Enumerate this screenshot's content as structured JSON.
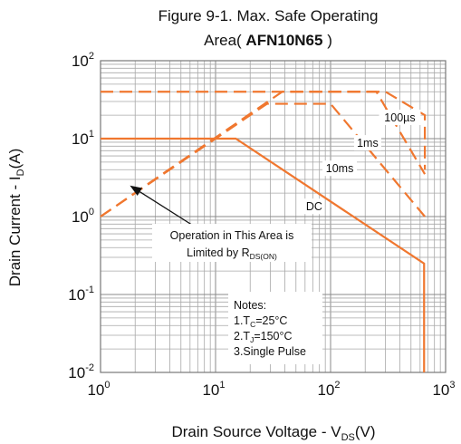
{
  "chart_data": {
    "type": "line",
    "title_line1": "Figure 9-1. Max. Safe Operating",
    "title_line2_prefix": "Area( ",
    "title_line2_bold": "AFN10N65",
    "title_line2_suffix": " )",
    "xlabel_main": "Drain Source Voltage - V",
    "xlabel_sub": "DS",
    "xlabel_tail": "(V)",
    "ylabel_main": "Drain Current - I",
    "ylabel_sub": "D",
    "ylabel_tail": "(A)",
    "x_scale": "log",
    "y_scale": "log",
    "xlim": [
      1,
      1000
    ],
    "ylim": [
      0.01,
      100
    ],
    "x_ticks": [
      {
        "base": "10",
        "exp": "0",
        "value": 1
      },
      {
        "base": "10",
        "exp": "1",
        "value": 10
      },
      {
        "base": "10",
        "exp": "2",
        "value": 100
      },
      {
        "base": "10",
        "exp": "3",
        "value": 1000
      }
    ],
    "y_ticks": [
      {
        "base": "10",
        "exp": "2",
        "value": 100
      },
      {
        "base": "10",
        "exp": "1",
        "value": 10
      },
      {
        "base": "10",
        "exp": "0",
        "value": 1
      },
      {
        "base": "10",
        "exp": "-1",
        "value": 0.1
      },
      {
        "base": "10",
        "exp": "-2",
        "value": 0.01
      }
    ],
    "grid": true,
    "line_color": "#f0772f",
    "series": [
      {
        "name": "DC",
        "style": "solid",
        "points": [
          [
            1,
            10
          ],
          [
            15,
            10
          ],
          [
            650,
            0.25
          ],
          [
            650,
            0.01
          ]
        ],
        "label_at": [
          72,
          1.3
        ]
      },
      {
        "name": "10ms",
        "style": "dashed",
        "points": [
          [
            1,
            1
          ],
          [
            28,
            28
          ],
          [
            100,
            28
          ],
          [
            660,
            1.0
          ]
        ],
        "label_at": [
          120,
          4.0
        ]
      },
      {
        "name": "1ms",
        "style": "dashed",
        "points": [
          [
            1,
            1
          ],
          [
            38,
            40
          ],
          [
            250,
            40
          ],
          [
            660,
            3.5
          ]
        ],
        "label_at": [
          210,
          8.5
        ]
      },
      {
        "name": "100µs",
        "style": "dashed",
        "points": [
          [
            1,
            40
          ],
          [
            300,
            40
          ],
          [
            660,
            20
          ],
          [
            660,
            4
          ]
        ],
        "label_at": [
          400,
          18
        ]
      }
    ],
    "annotation": {
      "line1": "Operation in This Area is",
      "line2_prefix": "Limited by R",
      "line2_sub": "DS(ON)",
      "arrow_to": [
        1.8,
        2.5
      ]
    },
    "notes": {
      "title": "Notes:",
      "line1_prefix": "1.T",
      "line1_sub": "C",
      "line1_tail": "=25°C",
      "line2_prefix": "2.T",
      "line2_sub": "J",
      "line2_tail": "=150°C",
      "line3": "3.Single Pulse"
    }
  }
}
